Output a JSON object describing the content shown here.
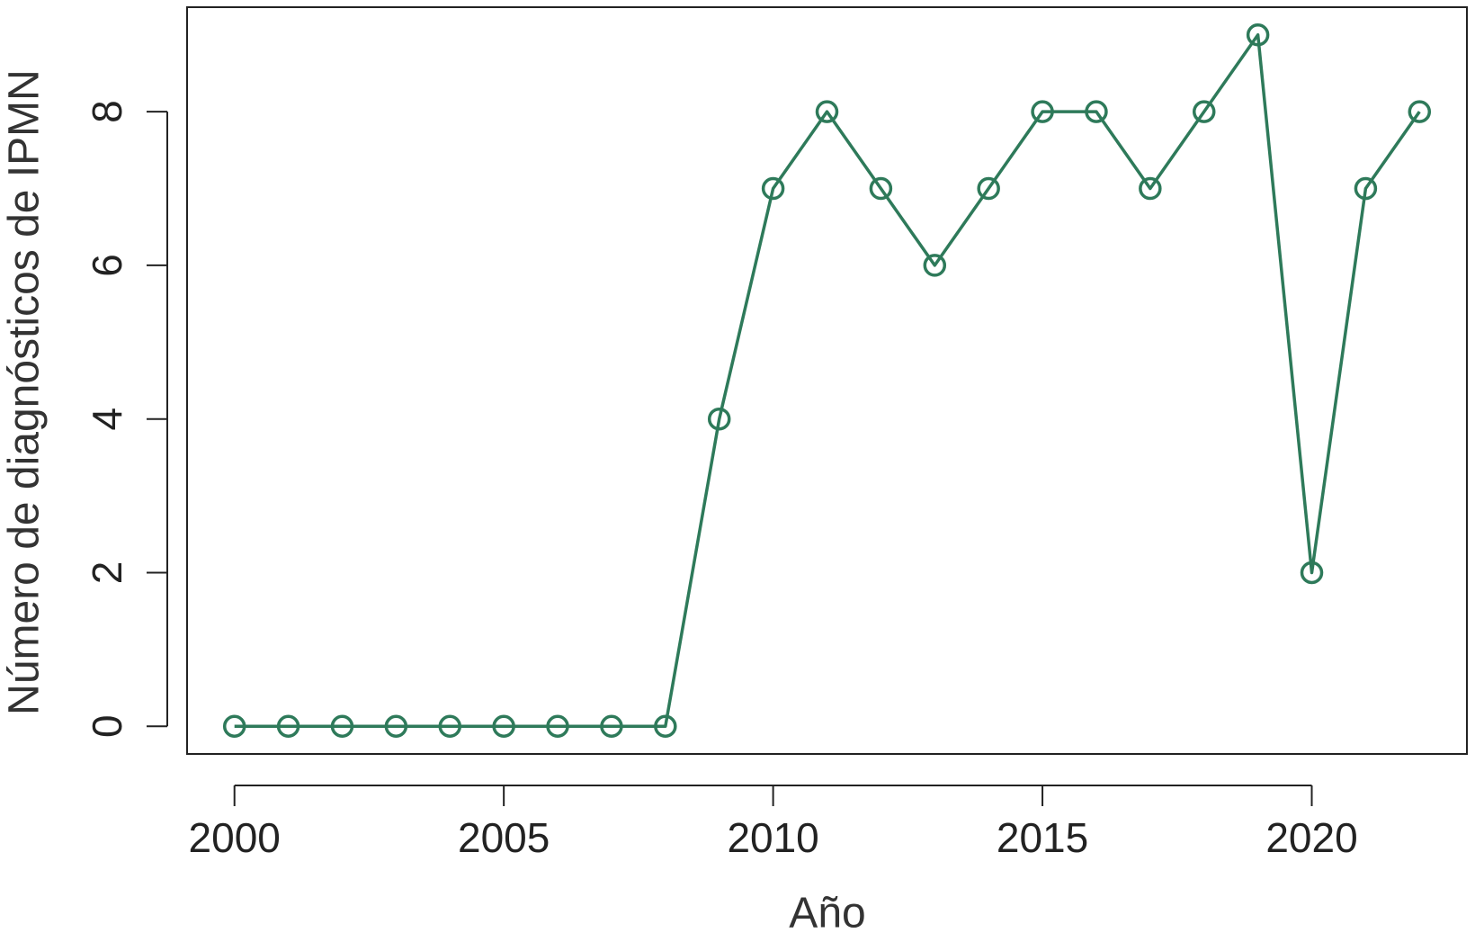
{
  "chart_data": {
    "type": "line",
    "xlabel": "Año",
    "ylabel": "Número de diagnósticos de IPMN",
    "x": [
      2000,
      2001,
      2002,
      2003,
      2004,
      2005,
      2006,
      2007,
      2008,
      2009,
      2010,
      2011,
      2012,
      2013,
      2014,
      2015,
      2016,
      2017,
      2018,
      2019,
      2020,
      2021,
      2022
    ],
    "values": [
      0,
      0,
      0,
      0,
      0,
      0,
      0,
      0,
      0,
      4,
      7,
      8,
      7,
      6,
      7,
      8,
      8,
      7,
      8,
      9,
      2,
      7,
      8
    ],
    "color": "#2e7a5a",
    "xlim": [
      1999.12,
      2022.88
    ],
    "ylim": [
      -0.36,
      9.36
    ],
    "xticks": [
      2000,
      2005,
      2010,
      2015,
      2020
    ],
    "yticks": [
      0,
      2,
      4,
      6,
      8
    ]
  }
}
